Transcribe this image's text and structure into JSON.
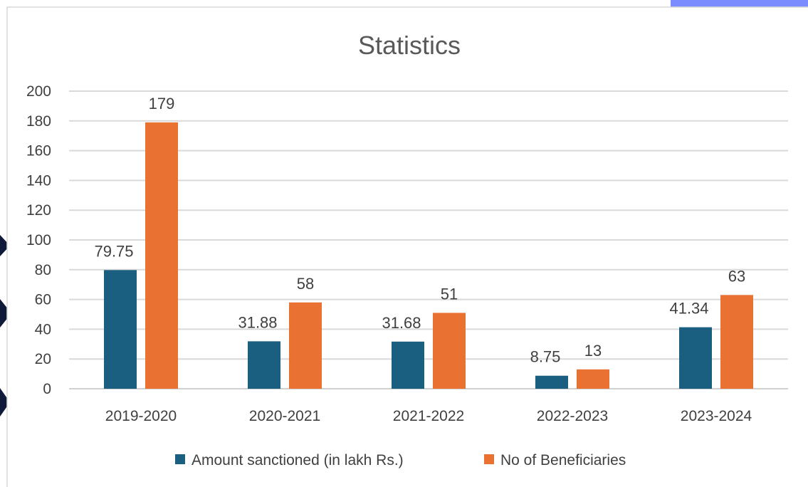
{
  "colors": {
    "amount": "#1a5f7f",
    "beneficiaries": "#e97132",
    "gridline": "#d9d9d9",
    "axis": "#d0d0d0",
    "page_accent": "#7b8cff",
    "page_frame": "#0f1a3a"
  },
  "chart_data": {
    "type": "bar",
    "title": "Statistics",
    "xlabel": "",
    "ylabel": "",
    "ylim": [
      0,
      200
    ],
    "yticks": [
      0,
      20,
      40,
      60,
      80,
      100,
      120,
      140,
      160,
      180,
      200
    ],
    "grid": true,
    "legend_position": "bottom",
    "categories": [
      "2019-2020",
      "2020-2021",
      "2021-2022",
      "2022-2023",
      "2023-2024"
    ],
    "series": [
      {
        "name": "Amount sanctioned (in lakh Rs.)",
        "values": [
          79.75,
          31.88,
          31.68,
          8.75,
          41.34
        ],
        "labels": [
          "79.75",
          "31.88",
          "31.68",
          "8.75",
          "41.34"
        ]
      },
      {
        "name": "No of Beneficiaries",
        "values": [
          179,
          58,
          51,
          13,
          63
        ],
        "labels": [
          "179",
          "58",
          "51",
          "13",
          "63"
        ]
      }
    ]
  }
}
